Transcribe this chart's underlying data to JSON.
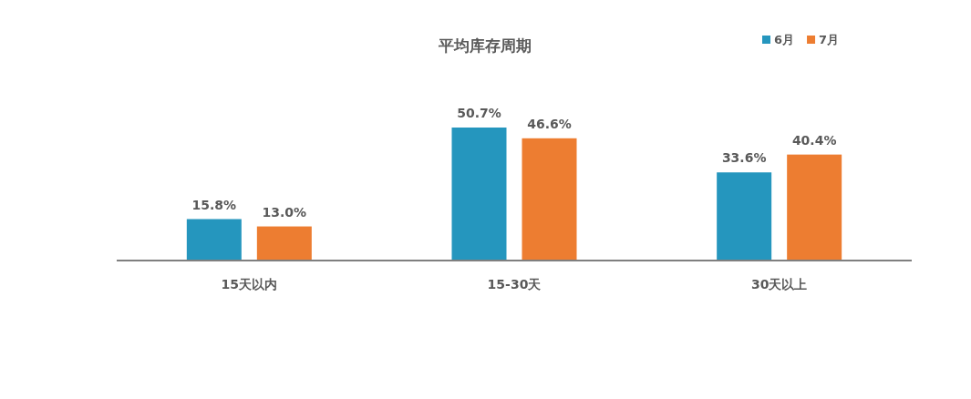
{
  "chart_data": {
    "type": "bar",
    "title": "平均库存周期",
    "categories": [
      "15天以内",
      "15-30天",
      "30天以上"
    ],
    "series": [
      {
        "name": "6月",
        "color": "#2596be",
        "values": [
          15.8,
          50.7,
          33.6
        ],
        "value_labels": [
          "15.8%",
          "50.7%",
          "33.6%"
        ]
      },
      {
        "name": "7月",
        "color": "#ed7d31",
        "values": [
          13.0,
          46.6,
          40.4
        ],
        "value_labels": [
          "13.0%",
          "46.6%",
          "40.4%"
        ]
      }
    ],
    "legend": "top right"
  }
}
